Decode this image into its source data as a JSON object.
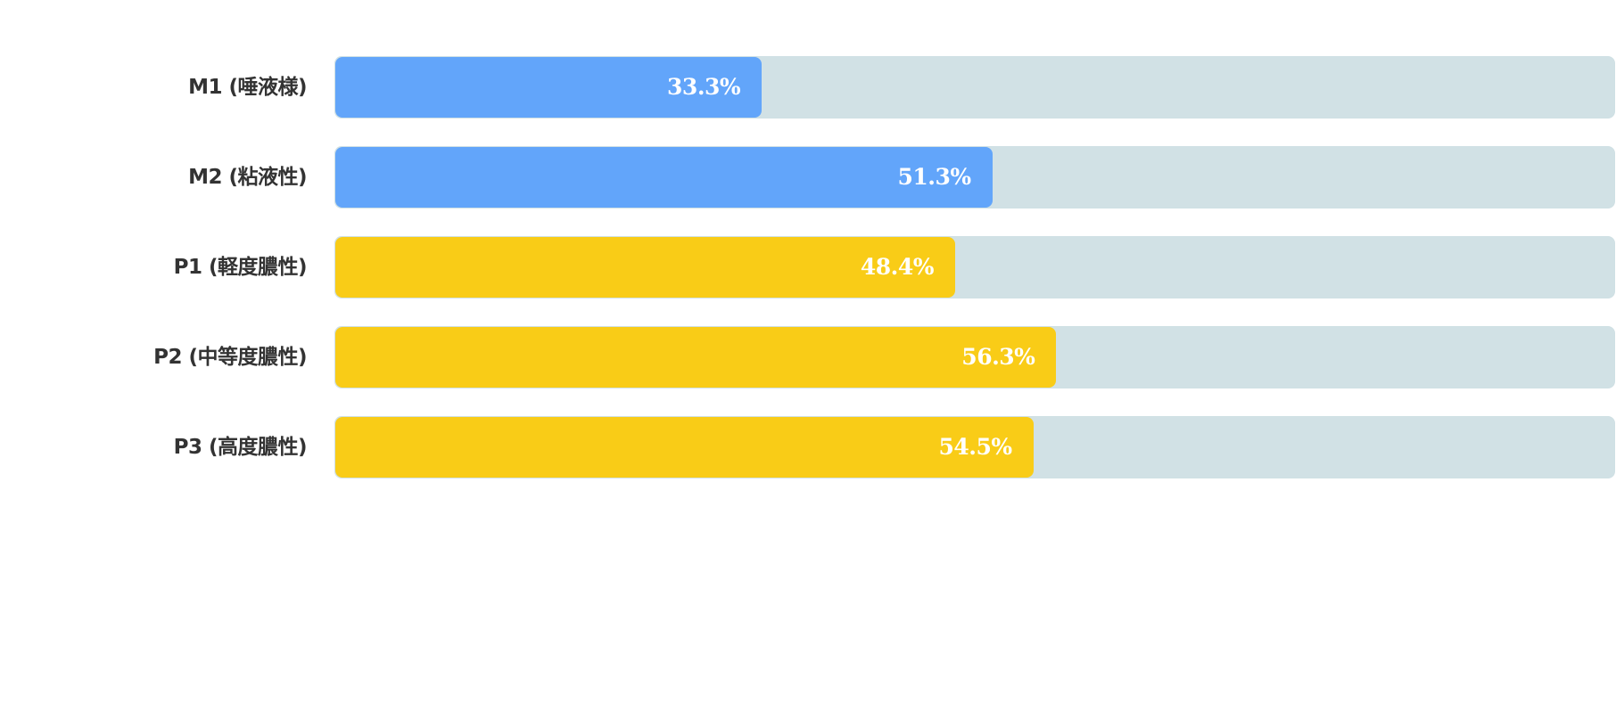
{
  "chart_data": {
    "type": "bar",
    "orientation": "horizontal",
    "categories": [
      "M1 (唾液様)",
      "M2 (粘液性)",
      "P1 (軽度膿性)",
      "P2 (中等度膿性)",
      "P3 (高度膿性)"
    ],
    "values": [
      33.3,
      51.3,
      48.4,
      56.3,
      54.5
    ],
    "value_labels": [
      "33.3%",
      "51.3%",
      "48.4%",
      "56.3%",
      "54.5%"
    ],
    "bar_colors": [
      "#62a5fa",
      "#62a5fa",
      "#f9cc17",
      "#f9cc17",
      "#f9cc17"
    ],
    "track_color": "#d1e1e5",
    "xlim": [
      0,
      100
    ],
    "grid": false,
    "legend": "none",
    "title": "",
    "xlabel": "",
    "ylabel": ""
  }
}
